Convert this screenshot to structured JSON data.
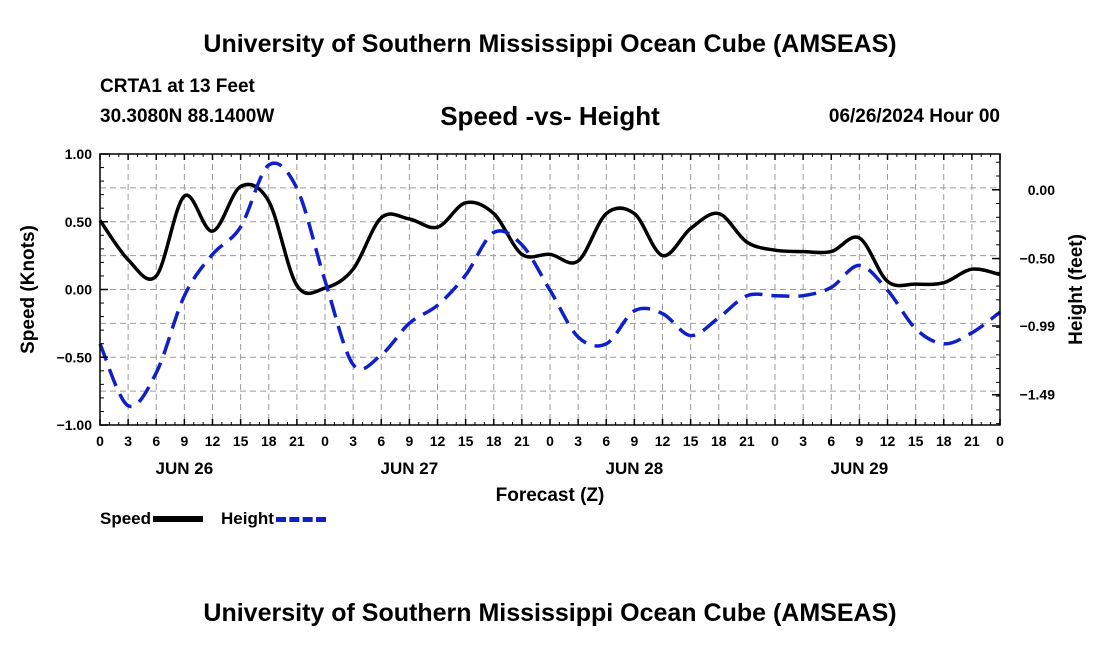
{
  "header": {
    "title": "University of Southern Mississippi Ocean Cube (AMSEAS)",
    "station": "CRTA1 at 13 Feet",
    "coords": "30.3080N  88.1400W",
    "plot_title": "Speed -vs- Height",
    "run_time": "06/26/2024 Hour 00"
  },
  "footer": {
    "title": "University of Southern Mississippi Ocean Cube (AMSEAS)"
  },
  "legend": {
    "speed_label": "Speed",
    "height_label": "Height"
  },
  "chart_data": {
    "type": "line",
    "title": "Speed -vs- Height",
    "xlabel": "Forecast (Z)",
    "ylabel": "Speed (Knots)",
    "y2label": "Height (feet)",
    "x_range": [
      0,
      96
    ],
    "ylim": [
      -1.0,
      1.0
    ],
    "y2lim": [
      -1.71,
      0.26
    ],
    "y_ticks": [
      1.0,
      0.5,
      0.0,
      -0.5,
      -1.0
    ],
    "y_tick_labels": [
      "1.00",
      "0.50",
      "0.00",
      "−0.50",
      "−1.00"
    ],
    "y2_ticks": [
      0.0,
      -0.5,
      -0.99,
      -1.49
    ],
    "y2_tick_labels": [
      "0.00",
      "−0.50",
      "−0.99",
      "−1.49"
    ],
    "x_tick_labels": [
      "0",
      "3",
      "6",
      "9",
      "12",
      "15",
      "18",
      "21",
      "0",
      "3",
      "6",
      "9",
      "12",
      "15",
      "18",
      "21",
      "0",
      "3",
      "6",
      "9",
      "12",
      "15",
      "18",
      "21",
      "0",
      "3",
      "6",
      "9",
      "12",
      "15",
      "18",
      "21",
      "0"
    ],
    "day_labels": [
      {
        "x": 9,
        "label": "JUN 26"
      },
      {
        "x": 33,
        "label": "JUN 27"
      },
      {
        "x": 57,
        "label": "JUN 28"
      },
      {
        "x": 81,
        "label": "JUN 29"
      }
    ],
    "colors": {
      "speed": "#000000",
      "height": "#1020c8",
      "grid": "#9a9a9a"
    },
    "series": [
      {
        "name": "Speed",
        "axis": "left",
        "x": [
          0,
          3,
          6,
          9,
          12,
          15,
          18,
          21,
          24,
          27,
          30,
          33,
          36,
          39,
          42,
          45,
          48,
          51,
          54,
          57,
          60,
          63,
          66,
          69,
          72,
          75,
          78,
          81,
          84,
          87,
          90,
          93,
          96
        ],
        "values": [
          0.51,
          0.22,
          0.1,
          0.69,
          0.43,
          0.76,
          0.65,
          0.03,
          0.01,
          0.15,
          0.53,
          0.52,
          0.46,
          0.64,
          0.56,
          0.26,
          0.26,
          0.21,
          0.56,
          0.56,
          0.25,
          0.45,
          0.56,
          0.35,
          0.29,
          0.28,
          0.28,
          0.38,
          0.06,
          0.04,
          0.05,
          0.15,
          0.11
        ]
      },
      {
        "name": "Height",
        "axis": "right",
        "x": [
          0,
          3,
          6,
          9,
          12,
          15,
          18,
          21,
          24,
          27,
          30,
          33,
          36,
          39,
          42,
          45,
          48,
          51,
          54,
          57,
          60,
          63,
          66,
          69,
          72,
          75,
          78,
          81,
          84,
          87,
          90,
          93,
          96
        ],
        "values": [
          -1.12,
          -1.57,
          -1.33,
          -0.77,
          -0.47,
          -0.27,
          0.18,
          0.01,
          -0.66,
          -1.27,
          -1.2,
          -0.97,
          -0.84,
          -0.62,
          -0.31,
          -0.4,
          -0.73,
          -1.07,
          -1.12,
          -0.88,
          -0.9,
          -1.06,
          -0.93,
          -0.77,
          -0.77,
          -0.77,
          -0.71,
          -0.55,
          -0.73,
          -1.01,
          -1.12,
          -1.04,
          -0.89
        ]
      }
    ]
  }
}
